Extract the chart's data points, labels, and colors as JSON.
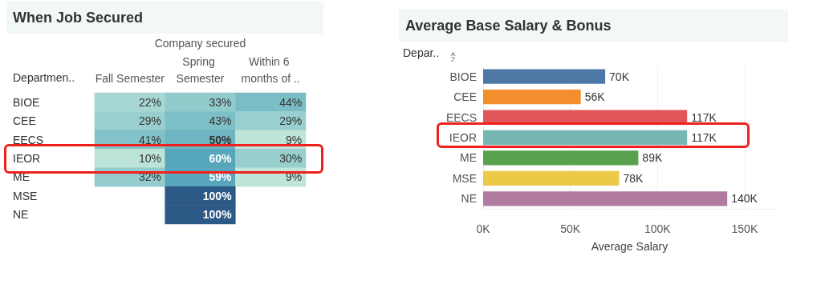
{
  "chart_data": [
    {
      "type": "heatmap",
      "title": "When Job Secured",
      "xlabel": "Company secured",
      "ylabel": "Departmen..",
      "categories": [
        "Fall Semester",
        "Spring Semester",
        "Within 6 months of .."
      ],
      "y_categories": [
        "BIOE",
        "CEE",
        "EECS",
        "IEOR",
        "ME",
        "MSE",
        "NE"
      ],
      "cells": [
        [
          22,
          33,
          44
        ],
        [
          29,
          43,
          29
        ],
        [
          41,
          50,
          9
        ],
        [
          10,
          60,
          30
        ],
        [
          32,
          59,
          9
        ],
        [
          null,
          100,
          null
        ],
        [
          null,
          100,
          null
        ]
      ],
      "cell_labels": [
        [
          "22%",
          "33%",
          "44%"
        ],
        [
          "29%",
          "43%",
          "29%"
        ],
        [
          "41%",
          "50%",
          "9%"
        ],
        [
          "10%",
          "60%",
          "30%"
        ],
        [
          "32%",
          "59%",
          "9%"
        ],
        [
          null,
          "100%",
          null
        ],
        [
          null,
          "100%",
          null
        ]
      ]
    },
    {
      "type": "bar",
      "orientation": "horizontal",
      "title": "Average Base Salary & Bonus",
      "xlabel": "Average Salary",
      "ylabel": "Depar..",
      "categories": [
        "BIOE",
        "CEE",
        "EECS",
        "IEOR",
        "ME",
        "MSE",
        "NE"
      ],
      "values": [
        70000,
        56000,
        117000,
        117000,
        89000,
        78000,
        140000
      ],
      "colors": [
        "#4e79a7",
        "#f28e2b",
        "#e15759",
        "#76b7b2",
        "#59a14f",
        "#edc948",
        "#b07aa1"
      ],
      "value_labels": [
        "70K",
        "56K",
        "117K",
        "117K",
        "89K",
        "78K",
        "140K"
      ],
      "xlim": [
        0,
        168000
      ],
      "xticks": [
        {
          "value": 0,
          "label": "0K"
        },
        {
          "value": 50000,
          "label": "50K"
        },
        {
          "value": 100000,
          "label": "100K"
        },
        {
          "value": 150000,
          "label": "150K"
        }
      ],
      "grid": "x"
    }
  ]
}
